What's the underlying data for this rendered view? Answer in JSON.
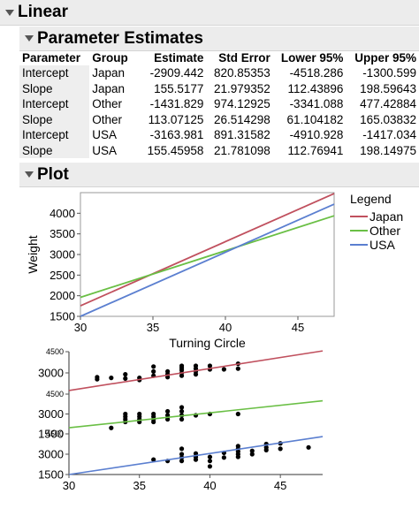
{
  "headers": {
    "linear": "Linear",
    "param_estimates": "Parameter Estimates",
    "plot": "Plot"
  },
  "table": {
    "columns": [
      "Parameter",
      "Group",
      "Estimate",
      "Std Error",
      "Lower 95%",
      "Upper 95%"
    ],
    "rows": [
      [
        "Intercept",
        "Japan",
        "-2909.442",
        "820.85353",
        "-4518.286",
        "-1300.599"
      ],
      [
        "Slope",
        "Japan",
        "155.5177",
        "21.979352",
        "112.43896",
        "198.59643"
      ],
      [
        "Intercept",
        "Other",
        "-1431.829",
        "974.12925",
        "-3341.088",
        "477.42884"
      ],
      [
        "Slope",
        "Other",
        "113.07125",
        "26.514298",
        "61.104182",
        "165.03832"
      ],
      [
        "Intercept",
        "USA",
        "-3163.981",
        "891.31582",
        "-4910.928",
        "-1417.034"
      ],
      [
        "Slope",
        "USA",
        "155.45958",
        "21.781098",
        "112.76941",
        "198.14975"
      ]
    ]
  },
  "colors": {
    "Japan": "#c0505e",
    "Other": "#6abf45",
    "USA": "#5b7fd0"
  },
  "chart_data": [
    {
      "type": "line",
      "xlabel": "Turning Circle",
      "ylabel": "Weight",
      "xlim": [
        30,
        47.5
      ],
      "ylim": [
        1500,
        4500
      ],
      "xticks": [
        30,
        35,
        40,
        45
      ],
      "yticks": [
        1500,
        2000,
        2500,
        3000,
        3500,
        4000
      ],
      "legend_title": "Legend",
      "legend_position": "right",
      "series": [
        {
          "name": "Japan",
          "intercept": -2909.442,
          "slope": 155.5177
        },
        {
          "name": "Other",
          "intercept": -1431.829,
          "slope": 113.07125
        },
        {
          "name": "USA",
          "intercept": -3163.981,
          "slope": 155.45958
        }
      ]
    },
    {
      "type": "scatter",
      "xlim": [
        30,
        48
      ],
      "xticks": [
        30,
        35,
        40,
        45
      ],
      "panels": [
        {
          "group": "Japan",
          "ylim": [
            1500,
            4500
          ],
          "yticks": [
            3000,
            4500
          ],
          "line": {
            "intercept": -2909.442,
            "slope": 155.5177
          },
          "points": [
            [
              32,
              2700
            ],
            [
              32,
              2550
            ],
            [
              33,
              2650
            ],
            [
              34,
              2600
            ],
            [
              34,
              2900
            ],
            [
              35,
              2500
            ],
            [
              35,
              2650
            ],
            [
              36,
              2800
            ],
            [
              36,
              3100
            ],
            [
              36,
              3450
            ],
            [
              37,
              2700
            ],
            [
              37,
              2900
            ],
            [
              37,
              3100
            ],
            [
              38,
              2800
            ],
            [
              38,
              3000
            ],
            [
              38,
              3200
            ],
            [
              38,
              3350
            ],
            [
              38,
              3500
            ],
            [
              39,
              2900
            ],
            [
              39,
              3100
            ],
            [
              39,
              3300
            ],
            [
              39,
              3500
            ],
            [
              40,
              3250
            ],
            [
              40,
              3500
            ],
            [
              41,
              3250
            ],
            [
              42,
              3300
            ],
            [
              42,
              3650
            ]
          ]
        },
        {
          "group": "Other",
          "ylim": [
            1500,
            4500
          ],
          "yticks": [
            1500,
            3000,
            4500
          ],
          "line": {
            "intercept": -1431.829,
            "slope": 113.07125
          },
          "points": [
            [
              33,
              1950
            ],
            [
              34,
              2400
            ],
            [
              34,
              2600
            ],
            [
              34,
              2800
            ],
            [
              34,
              3000
            ],
            [
              35,
              2400
            ],
            [
              35,
              2600
            ],
            [
              35,
              2800
            ],
            [
              35,
              3000
            ],
            [
              36,
              2400
            ],
            [
              36,
              2600
            ],
            [
              36,
              2800
            ],
            [
              36,
              3000
            ],
            [
              37,
              2600
            ],
            [
              37,
              2900
            ],
            [
              37,
              3200
            ],
            [
              38,
              2600
            ],
            [
              38,
              2900
            ],
            [
              38,
              3200
            ],
            [
              38,
              3500
            ],
            [
              39,
              2900
            ],
            [
              40,
              3000
            ],
            [
              42,
              3000
            ]
          ]
        },
        {
          "group": "USA",
          "ylim": [
            1500,
            4500
          ],
          "yticks": [
            1500,
            3000,
            4500
          ],
          "line": {
            "intercept": -3163.981,
            "slope": 155.45958
          },
          "points": [
            [
              36,
              2600
            ],
            [
              37,
              2500
            ],
            [
              38,
              2500
            ],
            [
              38,
              2750
            ],
            [
              38,
              3000
            ],
            [
              38,
              3400
            ],
            [
              39,
              2600
            ],
            [
              39,
              2800
            ],
            [
              39,
              3050
            ],
            [
              40,
              2500
            ],
            [
              40,
              2800
            ],
            [
              40,
              2100
            ],
            [
              41,
              2750
            ],
            [
              41,
              3100
            ],
            [
              42,
              2800
            ],
            [
              42,
              3000
            ],
            [
              42,
              3200
            ],
            [
              42,
              3400
            ],
            [
              42,
              3600
            ],
            [
              43,
              3000
            ],
            [
              43,
              3250
            ],
            [
              44,
              3300
            ],
            [
              44,
              3500
            ],
            [
              44,
              3750
            ],
            [
              45,
              3400
            ],
            [
              45,
              3800
            ],
            [
              47,
              3500
            ]
          ]
        }
      ]
    }
  ]
}
